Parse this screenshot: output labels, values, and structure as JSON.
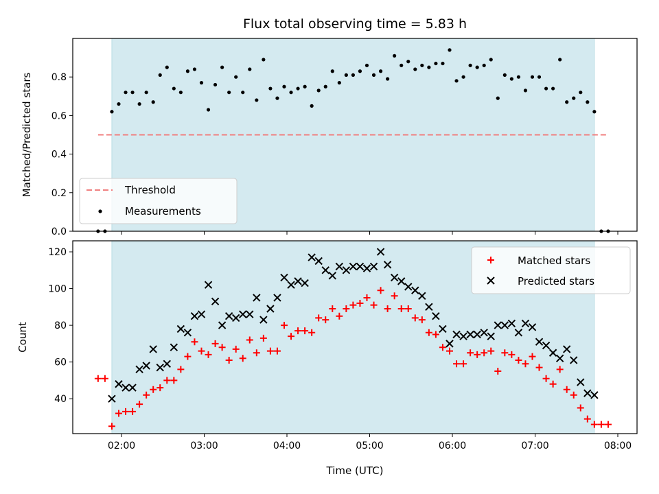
{
  "chart_data": {
    "type": "scatter",
    "title": "Flux total observing time = 5.83 h",
    "xlabel": "Time (UTC)",
    "x_ticks": [
      "02:00",
      "03:00",
      "04:00",
      "05:00",
      "06:00",
      "07:00",
      "08:00"
    ],
    "observing_window": {
      "start": "01:53",
      "end": "07:43"
    },
    "shade_color": "#d4eaf0",
    "panels": [
      {
        "id": "ratio",
        "ylabel": "Matched/Predicted stars",
        "ylim": [
          0,
          1.0
        ],
        "y_ticks": [
          0.0,
          0.2,
          0.4,
          0.6,
          0.8
        ],
        "legend_position": "lower-left",
        "threshold": {
          "name": "Threshold",
          "value": 0.5,
          "x_range": [
            "01:43",
            "07:53"
          ],
          "color": "#f08080",
          "style": "dashed"
        },
        "series": [
          {
            "name": "Measurements",
            "marker": "dot",
            "color": "#000000",
            "x": [
              "01:43",
              "01:48",
              "01:53",
              "01:58",
              "02:03",
              "02:08",
              "02:13",
              "02:18",
              "02:23",
              "02:28",
              "02:33",
              "02:38",
              "02:43",
              "02:48",
              "02:53",
              "02:58",
              "03:03",
              "03:08",
              "03:13",
              "03:18",
              "03:23",
              "03:28",
              "03:33",
              "03:38",
              "03:43",
              "03:48",
              "03:53",
              "03:58",
              "04:03",
              "04:08",
              "04:13",
              "04:18",
              "04:23",
              "04:28",
              "04:33",
              "04:38",
              "04:43",
              "04:48",
              "04:53",
              "04:58",
              "05:03",
              "05:08",
              "05:13",
              "05:18",
              "05:23",
              "05:28",
              "05:33",
              "05:38",
              "05:43",
              "05:48",
              "05:53",
              "05:58",
              "06:03",
              "06:08",
              "06:13",
              "06:18",
              "06:23",
              "06:28",
              "06:33",
              "06:38",
              "06:43",
              "06:48",
              "06:53",
              "06:58",
              "07:03",
              "07:08",
              "07:13",
              "07:18",
              "07:23",
              "07:28",
              "07:33",
              "07:38",
              "07:43",
              "07:48",
              "07:53"
            ],
            "y": [
              0.0,
              0.0,
              0.62,
              0.66,
              0.72,
              0.72,
              0.66,
              0.72,
              0.67,
              0.81,
              0.85,
              0.74,
              0.72,
              0.83,
              0.84,
              0.77,
              0.63,
              0.76,
              0.85,
              0.72,
              0.8,
              0.72,
              0.84,
              0.68,
              0.89,
              0.74,
              0.69,
              0.75,
              0.72,
              0.74,
              0.75,
              0.65,
              0.73,
              0.75,
              0.83,
              0.77,
              0.81,
              0.81,
              0.83,
              0.86,
              0.81,
              0.83,
              0.79,
              0.91,
              0.86,
              0.88,
              0.84,
              0.86,
              0.85,
              0.87,
              0.87,
              0.94,
              0.78,
              0.8,
              0.86,
              0.85,
              0.86,
              0.89,
              0.69,
              0.81,
              0.79,
              0.8,
              0.73,
              0.8,
              0.8,
              0.74,
              0.74,
              0.89,
              0.67,
              0.69,
              0.72,
              0.67,
              0.62,
              0.0,
              0.0
            ]
          }
        ]
      },
      {
        "id": "count",
        "ylabel": "Count",
        "ylim": [
          21,
          126
        ],
        "y_ticks": [
          40,
          60,
          80,
          100,
          120
        ],
        "legend_position": "upper-right",
        "series": [
          {
            "name": "Matched stars",
            "marker": "plus",
            "color": "#ff0000",
            "x": [
              "01:43",
              "01:48",
              "01:53",
              "01:58",
              "02:03",
              "02:08",
              "02:13",
              "02:18",
              "02:23",
              "02:28",
              "02:33",
              "02:38",
              "02:43",
              "02:48",
              "02:53",
              "02:58",
              "03:03",
              "03:08",
              "03:13",
              "03:18",
              "03:23",
              "03:28",
              "03:33",
              "03:38",
              "03:43",
              "03:48",
              "03:53",
              "03:58",
              "04:03",
              "04:08",
              "04:13",
              "04:18",
              "04:23",
              "04:28",
              "04:33",
              "04:38",
              "04:43",
              "04:48",
              "04:53",
              "04:58",
              "05:03",
              "05:08",
              "05:13",
              "05:18",
              "05:23",
              "05:28",
              "05:33",
              "05:38",
              "05:43",
              "05:48",
              "05:53",
              "05:58",
              "06:03",
              "06:08",
              "06:13",
              "06:18",
              "06:23",
              "06:28",
              "06:33",
              "06:38",
              "06:43",
              "06:48",
              "06:53",
              "06:58",
              "07:03",
              "07:08",
              "07:13",
              "07:18",
              "07:23",
              "07:28",
              "07:33",
              "07:38",
              "07:43",
              "07:48",
              "07:53"
            ],
            "y": [
              51,
              51,
              25,
              32,
              33,
              33,
              37,
              42,
              45,
              46,
              50,
              50,
              56,
              63,
              71,
              66,
              64,
              70,
              68,
              61,
              67,
              62,
              72,
              65,
              73,
              66,
              66,
              80,
              74,
              77,
              77,
              76,
              84,
              83,
              89,
              85,
              89,
              91,
              92,
              95,
              91,
              99,
              89,
              96,
              89,
              89,
              84,
              83,
              76,
              75,
              68,
              66,
              59,
              59,
              65,
              64,
              65,
              66,
              55,
              65,
              64,
              61,
              59,
              63,
              57,
              51,
              48,
              56,
              45,
              42,
              35,
              29,
              26,
              26,
              26
            ]
          },
          {
            "name": "Predicted stars",
            "marker": "x",
            "color": "#000000",
            "x": [
              "01:53",
              "01:58",
              "02:03",
              "02:08",
              "02:13",
              "02:18",
              "02:23",
              "02:28",
              "02:33",
              "02:38",
              "02:43",
              "02:48",
              "02:53",
              "02:58",
              "03:03",
              "03:08",
              "03:13",
              "03:18",
              "03:23",
              "03:28",
              "03:33",
              "03:38",
              "03:43",
              "03:48",
              "03:53",
              "03:58",
              "04:03",
              "04:08",
              "04:13",
              "04:18",
              "04:23",
              "04:28",
              "04:33",
              "04:38",
              "04:43",
              "04:48",
              "04:53",
              "04:58",
              "05:03",
              "05:08",
              "05:13",
              "05:18",
              "05:23",
              "05:28",
              "05:33",
              "05:38",
              "05:43",
              "05:48",
              "05:53",
              "05:58",
              "06:03",
              "06:08",
              "06:13",
              "06:18",
              "06:23",
              "06:28",
              "06:33",
              "06:38",
              "06:43",
              "06:48",
              "06:53",
              "06:58",
              "07:03",
              "07:08",
              "07:13",
              "07:18",
              "07:23",
              "07:28",
              "07:33",
              "07:38",
              "07:43"
            ],
            "y": [
              40,
              48,
              46,
              46,
              56,
              58,
              67,
              57,
              59,
              68,
              78,
              76,
              85,
              86,
              102,
              93,
              80,
              85,
              84,
              86,
              86,
              95,
              83,
              89,
              95,
              106,
              102,
              104,
              103,
              117,
              115,
              110,
              107,
              112,
              110,
              112,
              112,
              111,
              112,
              120,
              113,
              106,
              104,
              101,
              99,
              96,
              90,
              85,
              78,
              70,
              75,
              74,
              75,
              75,
              76,
              74,
              80,
              80,
              81,
              76,
              81,
              79,
              71,
              69,
              65,
              62,
              67,
              61,
              49,
              43,
              42
            ]
          }
        ]
      }
    ]
  }
}
